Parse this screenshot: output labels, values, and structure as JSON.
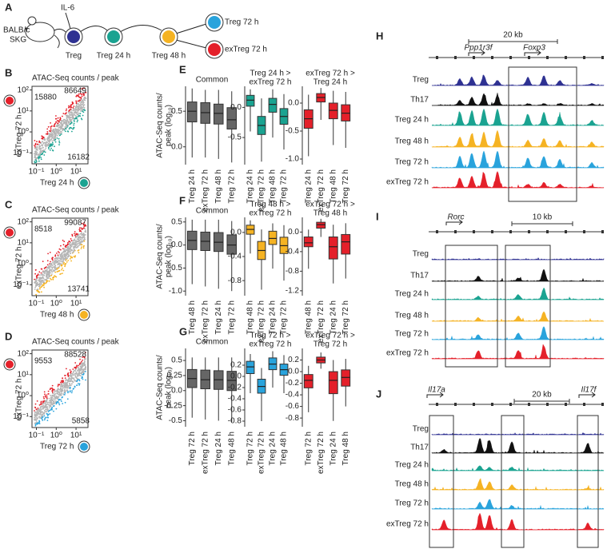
{
  "panel_a": {
    "letter": "A",
    "strain": [
      "BALB/c",
      "SKG"
    ],
    "stimulus": "IL-6",
    "nodes": [
      {
        "label": "Treg",
        "color": "#2e3192"
      },
      {
        "label": "Treg 24 h",
        "color": "#1aa391"
      },
      {
        "label": "Treg 48 h",
        "color": "#f5b323"
      },
      {
        "label": "Treg 72 h",
        "color": "#29a3dc"
      },
      {
        "label": "exTreg 72 h",
        "color": "#e4202a"
      }
    ]
  },
  "scatter_panels": [
    {
      "letter": "B",
      "title": "ATAC-Seq counts / peak",
      "y_label": "exTreg 72 h",
      "x_label": "Treg 24 h",
      "y_color": "#e4202a",
      "x_color": "#1aa391",
      "counts": [
        {
          "value": 15880,
          "color": "#e4202a"
        },
        {
          "value": 86649,
          "color": "#777777"
        },
        {
          "value": 16182,
          "color": "#1aa391"
        }
      ],
      "log_scale": true,
      "xlim": [
        0.06,
        40
      ],
      "ylim": [
        0.03,
        150
      ],
      "xticks": [
        {
          "value": 0.1,
          "label": "10⁻¹"
        },
        {
          "value": 1,
          "label": "10⁰"
        },
        {
          "value": 10,
          "label": "10¹"
        }
      ],
      "yticks": [
        {
          "value": 0.1,
          "label": "10⁻¹"
        },
        {
          "value": 1,
          "label": "10⁰"
        },
        {
          "value": 10,
          "label": "10¹"
        },
        {
          "value": 100,
          "label": "10²"
        }
      ]
    },
    {
      "letter": "C",
      "title": "ATAC-Seq counts / peak",
      "y_label": "exTreg 72 h",
      "x_label": "Treg 48 h",
      "y_color": "#e4202a",
      "x_color": "#f5b323",
      "counts": [
        {
          "value": 8518,
          "color": "#e4202a"
        },
        {
          "value": 99087,
          "color": "#777777"
        },
        {
          "value": 13741,
          "color": "#f5b323"
        }
      ],
      "log_scale": true,
      "xlim": [
        0.06,
        40
      ],
      "ylim": [
        0.03,
        150
      ],
      "xticks": [
        {
          "value": 0.1,
          "label": "10⁻¹"
        },
        {
          "value": 1,
          "label": "10⁰"
        },
        {
          "value": 10,
          "label": "10¹"
        }
      ],
      "yticks": [
        {
          "value": 0.1,
          "label": "10⁻¹"
        },
        {
          "value": 1,
          "label": "10⁰"
        },
        {
          "value": 10,
          "label": "10¹"
        },
        {
          "value": 100,
          "label": "10²"
        }
      ]
    },
    {
      "letter": "D",
      "title": "ATAC-Seq counts / peak",
      "y_label": "exTreg 72 h",
      "x_label": "Treg 72 h",
      "y_color": "#e4202a",
      "x_color": "#29a3dc",
      "counts": [
        {
          "value": 9553,
          "color": "#e4202a"
        },
        {
          "value": 88528,
          "color": "#777777"
        },
        {
          "value": 5858,
          "color": "#29a3dc"
        }
      ],
      "log_scale": true,
      "xlim": [
        0.06,
        40
      ],
      "ylim": [
        0.03,
        150
      ],
      "xticks": [
        {
          "value": 0.1,
          "label": "10⁻¹"
        },
        {
          "value": 1,
          "label": "10⁰"
        },
        {
          "value": 10,
          "label": "10¹"
        }
      ],
      "yticks": [
        {
          "value": 0.1,
          "label": "10⁻¹"
        },
        {
          "value": 1,
          "label": "10⁰"
        },
        {
          "value": 10,
          "label": "10¹"
        },
        {
          "value": 100,
          "label": "10²"
        }
      ]
    }
  ],
  "box_panels": [
    {
      "letter": "E",
      "y_label": [
        "ATAC-Seq counts/",
        "peak (log₁₀)"
      ],
      "subplots": [
        {
          "title": [
            "Common"
          ],
          "color": "#666666",
          "ylim": [
            -0.25,
            0.85
          ],
          "yticks": [
            0.5,
            {
              "value": 0,
              "label": "0.0"
            }
          ],
          "categories": [
            "Treg 24 h",
            "exTreg 72 h",
            "Treg 48 h",
            "Treg 72 h"
          ],
          "boxes": [
            [
              -0.15,
              0.35,
              0.5,
              0.63,
              0.82
            ],
            [
              -0.15,
              0.33,
              0.48,
              0.62,
              0.8
            ],
            [
              -0.17,
              0.32,
              0.47,
              0.6,
              0.8
            ],
            [
              -0.22,
              0.25,
              0.38,
              0.55,
              0.78
            ]
          ]
        },
        {
          "title": [
            "Treg 24 h >",
            "exTreg 72 h"
          ],
          "color": "#1aa391",
          "ylim": [
            -0.95,
            0.35
          ],
          "yticks": [
            {
              "value": 0,
              "label": "0.0"
            },
            -0.5
          ],
          "categories": [
            "Treg 24 h",
            "exTreg 72 h",
            "Treg 48 h",
            "Treg 72 h"
          ],
          "boxes": [
            [
              -0.4,
              0.02,
              0.12,
              0.2,
              0.3
            ],
            [
              -0.9,
              -0.45,
              -0.3,
              -0.15,
              0.15
            ],
            [
              -0.5,
              -0.08,
              0.05,
              0.15,
              0.3
            ],
            [
              -0.7,
              -0.28,
              -0.15,
              -0.02,
              0.22
            ]
          ]
        },
        {
          "title": [
            "exTreg 72 h >",
            "Treg 24 h"
          ],
          "color": "#e4202a",
          "ylim": [
            -1.1,
            0.3
          ],
          "yticks": [
            {
              "value": 0,
              "label": "0.0"
            },
            -0.5,
            {
              "value": -1,
              "label": "-1.0"
            }
          ],
          "categories": [
            "Treg 24 h",
            "exTreg 72 h",
            "Treg 48 h",
            "Treg 72 h"
          ],
          "boxes": [
            [
              -0.95,
              -0.45,
              -0.28,
              -0.12,
              0.15
            ],
            [
              -0.3,
              0.02,
              0.1,
              0.17,
              0.27
            ],
            [
              -0.75,
              -0.28,
              -0.13,
              0.0,
              0.22
            ],
            [
              -0.8,
              -0.32,
              -0.18,
              -0.03,
              0.2
            ]
          ]
        }
      ]
    },
    {
      "letter": "F",
      "y_label": [
        "ATAC-Seq counts/",
        "peak (log₁₀)"
      ],
      "subplots": [
        {
          "title": [
            "Common"
          ],
          "color": "#666666",
          "ylim": [
            -1.1,
            0.6
          ],
          "yticks": [
            0.5,
            {
              "value": 0,
              "label": "0.0"
            },
            -0.5,
            {
              "value": -1,
              "label": "-1.0"
            }
          ],
          "categories": [
            "Treg 48 h",
            "exTreg 72 h",
            "Treg 24 h",
            "Treg 72 h"
          ],
          "boxes": [
            [
              -0.85,
              -0.1,
              0.1,
              0.3,
              0.55
            ],
            [
              -0.9,
              -0.12,
              0.08,
              0.28,
              0.55
            ],
            [
              -0.95,
              -0.14,
              0.06,
              0.27,
              0.55
            ],
            [
              -1.0,
              -0.2,
              0.0,
              0.22,
              0.52
            ]
          ]
        },
        {
          "title": [
            "Treg 48 h >",
            "exTreg 72 h"
          ],
          "color": "#f5b323",
          "ylim": [
            -1.05,
            0.25
          ],
          "yticks": [
            {
              "value": 0,
              "label": "0.0"
            },
            -0.4,
            -0.8
          ],
          "categories": [
            "Treg 48 h",
            "exTreg 72 h",
            "Treg 24 h",
            "Treg 72 h"
          ],
          "boxes": [
            [
              -0.35,
              -0.03,
              0.05,
              0.12,
              0.2
            ],
            [
              -0.95,
              -0.45,
              -0.3,
              -0.15,
              0.05
            ],
            [
              -0.6,
              -0.2,
              -0.1,
              0.02,
              0.15
            ],
            [
              -0.8,
              -0.35,
              -0.22,
              -0.08,
              0.12
            ]
          ]
        },
        {
          "title": [
            "exTreg 72 h >",
            "Treg 48 h"
          ],
          "color": "#e4202a",
          "ylim": [
            -1.3,
            0.3
          ],
          "yticks": [
            {
              "value": 0,
              "label": "0.0"
            },
            -0.4,
            -0.8,
            -1.2
          ],
          "categories": [
            "Treg 48 h",
            "exTreg 72 h",
            "Treg 24 h",
            "Treg 72 h"
          ],
          "boxes": [
            [
              -0.75,
              -0.3,
              -0.22,
              -0.1,
              0.05
            ],
            [
              -0.1,
              0.08,
              0.15,
              0.2,
              0.27
            ],
            [
              -1.05,
              -0.55,
              -0.3,
              -0.1,
              0.15
            ],
            [
              -0.95,
              -0.45,
              -0.2,
              -0.05,
              0.18
            ]
          ]
        }
      ]
    },
    {
      "letter": "G",
      "y_label": [
        "ATAC-Seq counts/",
        "peak (log₁₀)"
      ],
      "subplots": [
        {
          "title": [
            "Common"
          ],
          "color": "#666666",
          "ylim": [
            -0.6,
            0.7
          ],
          "yticks": [
            0.5,
            0.25,
            {
              "value": 0,
              "label": "0.0"
            },
            -0.25,
            -0.5
          ],
          "categories": [
            "Treg 72 h",
            "exTreg 72 h",
            "Treg 24 h",
            "Treg 48 h"
          ],
          "boxes": [
            [
              -0.45,
              0.05,
              0.2,
              0.35,
              0.55
            ],
            [
              -0.48,
              0.03,
              0.18,
              0.34,
              0.55
            ],
            [
              -0.5,
              0.02,
              0.18,
              0.33,
              0.55
            ],
            [
              -0.52,
              0.0,
              0.17,
              0.32,
              0.55
            ]
          ]
        },
        {
          "title": [
            "Treg 72 h >",
            "exTreg 72 h"
          ],
          "color": "#29a3dc",
          "ylim": [
            -0.9,
            0.5
          ],
          "yticks": [
            0.2,
            {
              "value": 0,
              "label": "0.0"
            },
            -0.2,
            -0.4,
            -0.6,
            -0.8
          ],
          "categories": [
            "Treg 72 h",
            "exTreg 72 h",
            "Treg 24 h",
            "Treg 48 h"
          ],
          "boxes": [
            [
              -0.3,
              0.05,
              0.17,
              0.27,
              0.4
            ],
            [
              -0.8,
              -0.3,
              -0.18,
              -0.05,
              0.15
            ],
            [
              -0.2,
              0.12,
              0.22,
              0.33,
              0.45
            ],
            [
              -0.3,
              0.02,
              0.12,
              0.22,
              0.38
            ]
          ]
        },
        {
          "title": [
            "exTreg 72 h >",
            "Treg 72 h"
          ],
          "color": "#e4202a",
          "ylim": [
            -0.95,
            0.4
          ],
          "yticks": [
            0.2,
            {
              "value": 0,
              "label": "0.0"
            },
            -0.2,
            -0.4,
            -0.6,
            -0.8
          ],
          "categories": [
            "Treg 72 h",
            "exTreg 72 h",
            "Treg 24 h",
            "Treg 48 h"
          ],
          "boxes": [
            [
              -0.7,
              -0.28,
              -0.15,
              -0.05,
              0.1
            ],
            [
              0.05,
              0.15,
              0.2,
              0.25,
              0.33
            ],
            [
              -0.85,
              -0.38,
              -0.15,
              0.0,
              0.2
            ],
            [
              -0.6,
              -0.25,
              -0.1,
              0.03,
              0.22
            ]
          ]
        }
      ]
    }
  ],
  "track_panels": [
    {
      "letter": "H",
      "scale": "20 kb",
      "genes": [
        "Ppp1r3f",
        "Foxp3"
      ],
      "tracks": [
        {
          "label": "Treg",
          "color": "#2e3192"
        },
        {
          "label": "Th17",
          "color": "#111111"
        },
        {
          "label": "Treg 24 h",
          "color": "#1aa391"
        },
        {
          "label": "Treg 48 h",
          "color": "#f5b323"
        },
        {
          "label": "Treg 72 h",
          "color": "#29a3dc"
        },
        {
          "label": "exTreg 72 h",
          "color": "#e4202a"
        }
      ]
    },
    {
      "letter": "I",
      "scale": "10 kb",
      "genes": [
        "Rorc"
      ],
      "tracks": [
        {
          "label": "Treg",
          "color": "#2e3192"
        },
        {
          "label": "Th17",
          "color": "#111111"
        },
        {
          "label": "Treg 24 h",
          "color": "#1aa391"
        },
        {
          "label": "Treg 48 h",
          "color": "#f5b323"
        },
        {
          "label": "Treg 72 h",
          "color": "#29a3dc"
        },
        {
          "label": "exTreg 72 h",
          "color": "#e4202a"
        }
      ]
    },
    {
      "letter": "J",
      "scale": "20 kb",
      "genes": [
        "Il17a",
        "Il17f"
      ],
      "tracks": [
        {
          "label": "Treg",
          "color": "#2e3192"
        },
        {
          "label": "Th17",
          "color": "#111111"
        },
        {
          "label": "Treg 24 h",
          "color": "#1aa391"
        },
        {
          "label": "Treg 48 h",
          "color": "#f5b323"
        },
        {
          "label": "Treg 72 h",
          "color": "#29a3dc"
        },
        {
          "label": "exTreg 72 h",
          "color": "#e4202a"
        }
      ]
    }
  ]
}
